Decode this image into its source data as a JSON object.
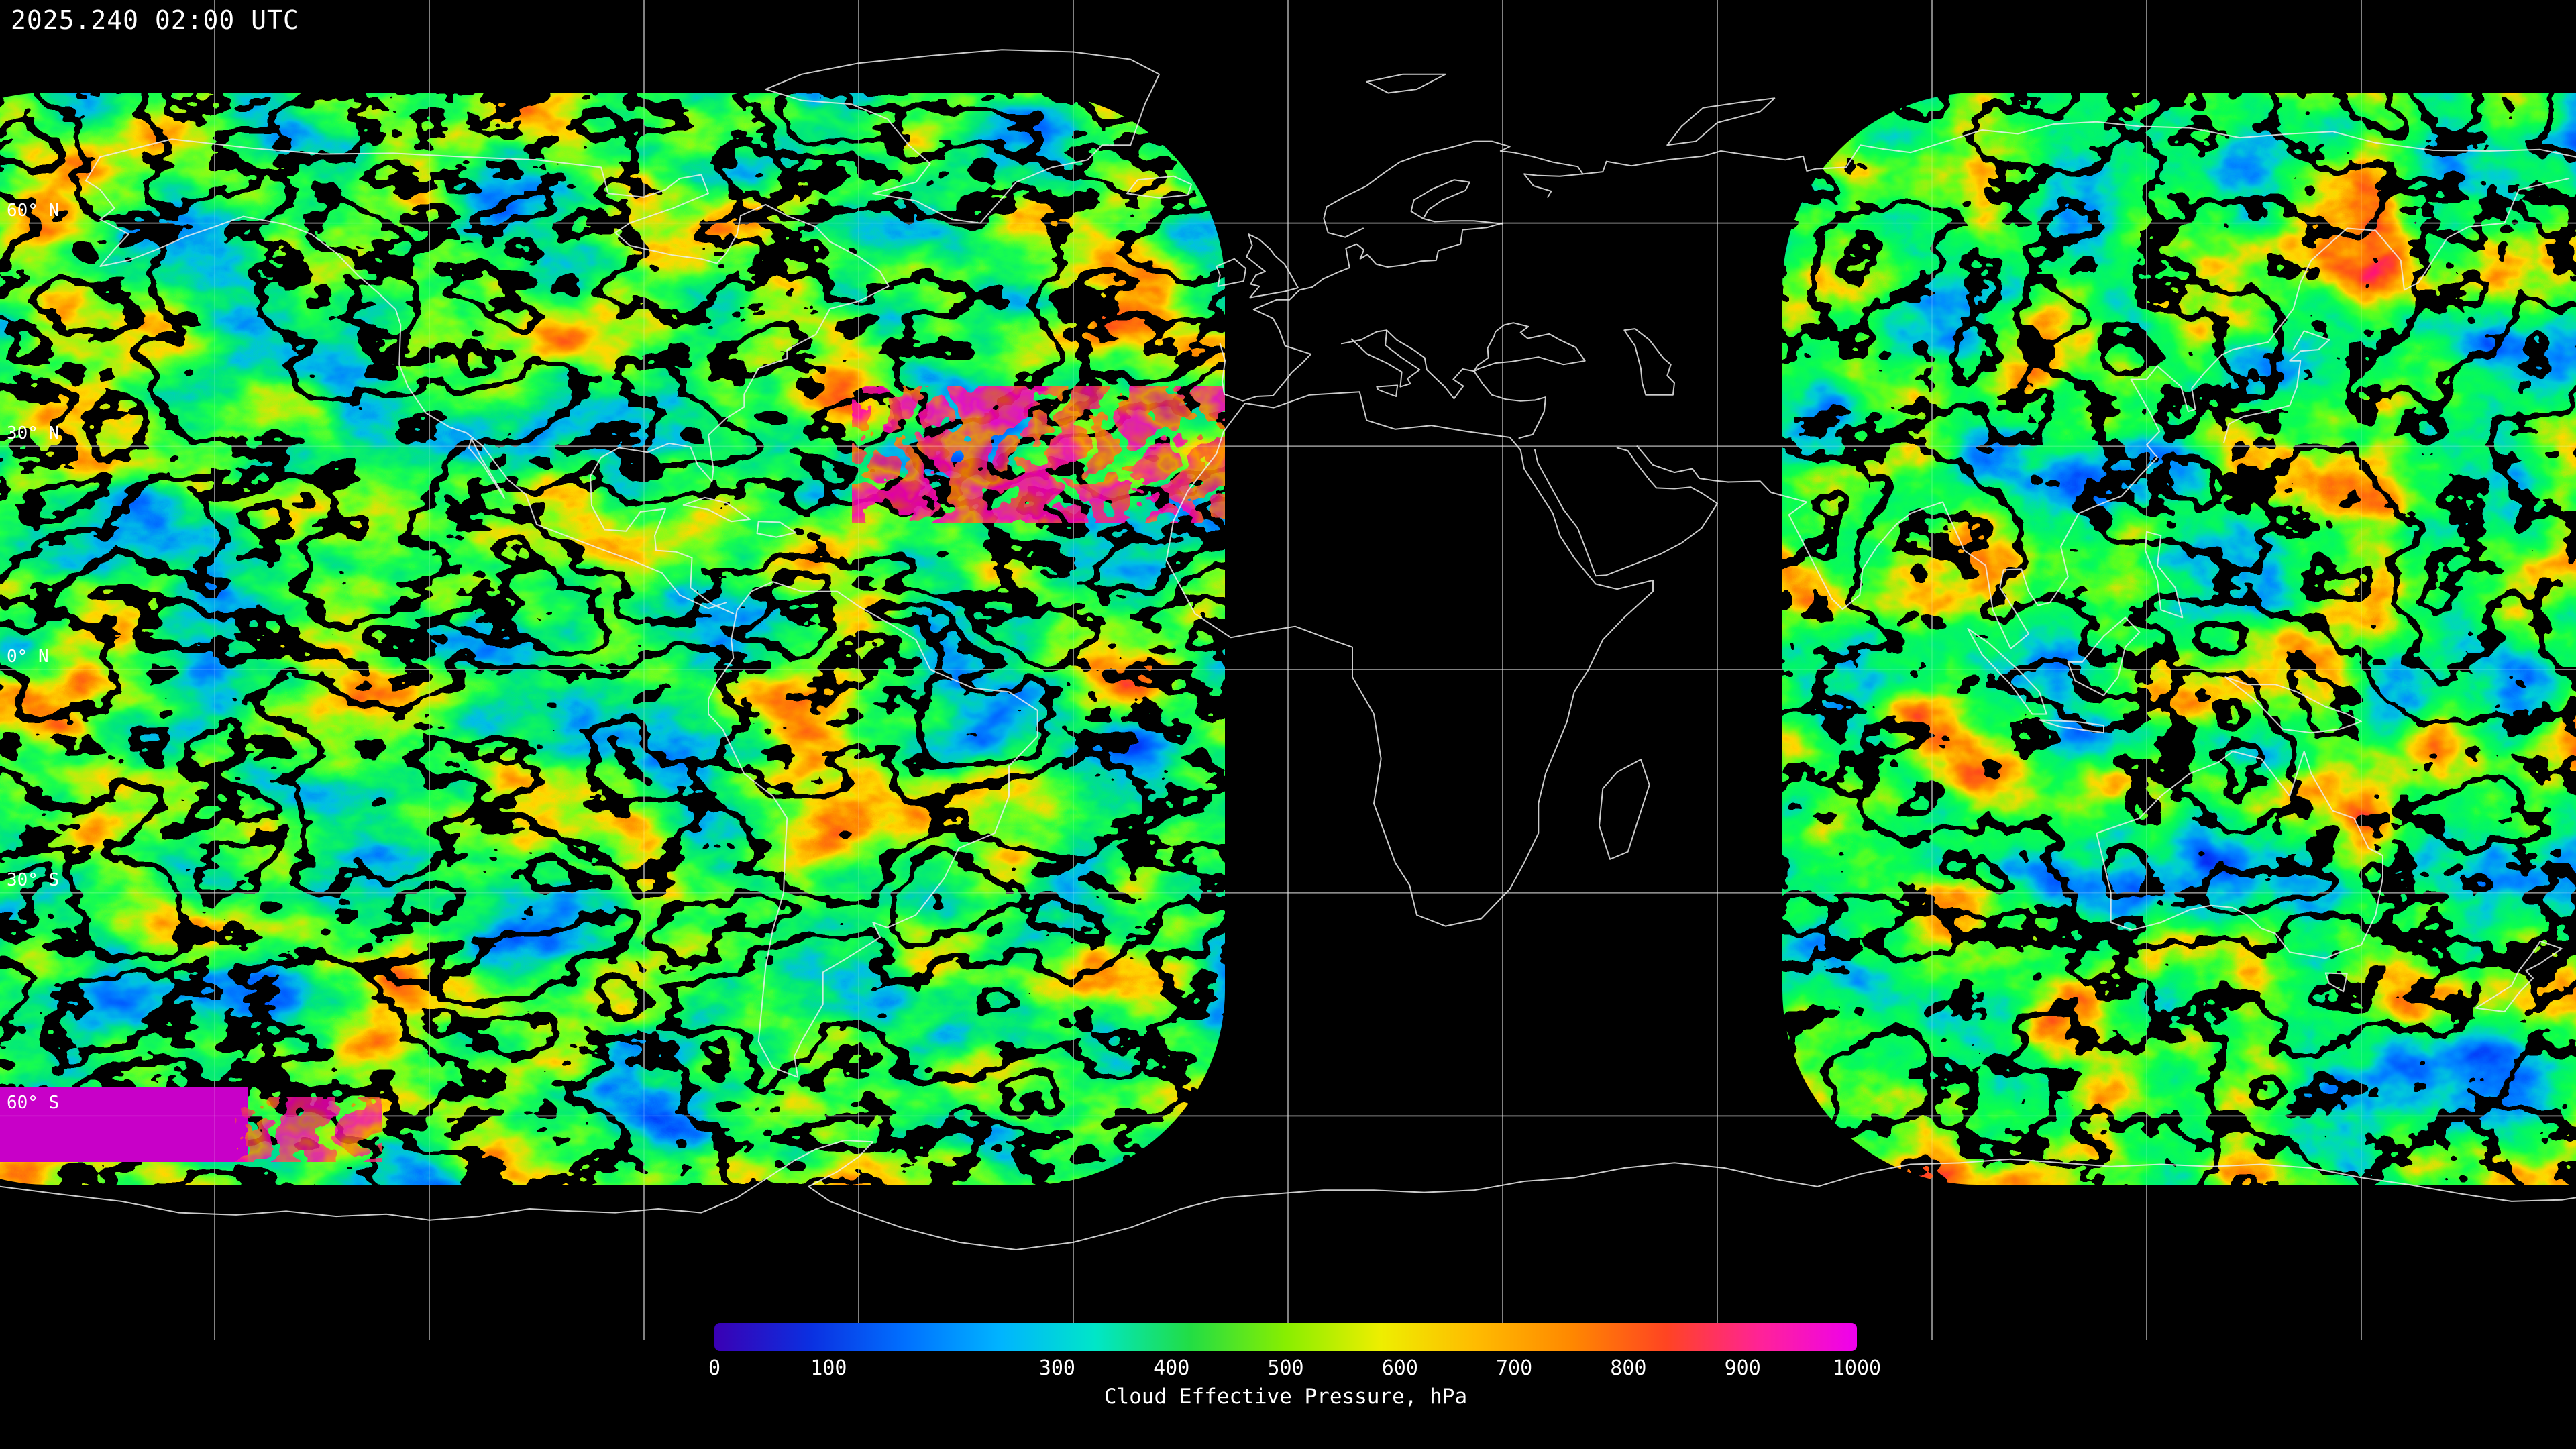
{
  "header": {
    "timestamp": "2025.240 02:00 UTC"
  },
  "map": {
    "latitude_labels": [
      "60° N",
      "30° N",
      "0° N",
      "30° S",
      "60° S"
    ],
    "background_color": "#000000",
    "coastline_color": "#ffffff",
    "grid_color": "#cccccc"
  },
  "colorbar": {
    "title": "Cloud Effective Pressure, hPa",
    "unit": "hPa",
    "min": 0,
    "max": 1000,
    "tick_labels": [
      "0",
      "100",
      "300",
      "400",
      "500",
      "600",
      "700",
      "800",
      "900",
      "1000"
    ],
    "tick_values": [
      0,
      100,
      300,
      400,
      500,
      600,
      700,
      800,
      900,
      1000
    ],
    "gradient_colors": [
      "#3a00b4",
      "#0b2fe0",
      "#0070ff",
      "#00b4ff",
      "#00e6c8",
      "#22dd44",
      "#88ee00",
      "#eeee00",
      "#ffbb00",
      "#ff8800",
      "#ff4422",
      "#ff2299",
      "#ee00ee"
    ]
  }
}
